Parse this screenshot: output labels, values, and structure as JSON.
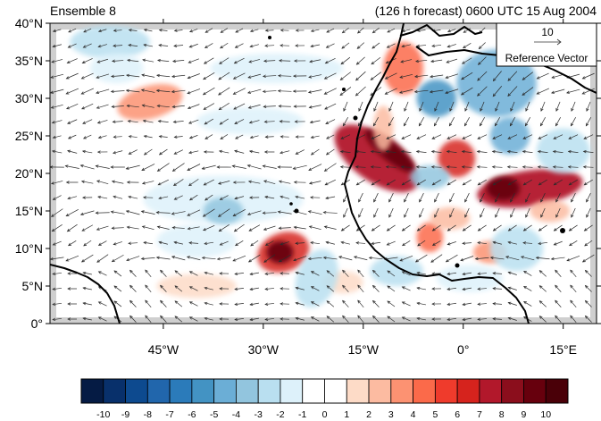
{
  "header": {
    "left_title": "Ensemble 8",
    "right_title": "(126 h forecast) 0600 UTC 15 Aug 2004"
  },
  "map": {
    "lon_range": [
      -62,
      20
    ],
    "lat_range": [
      0,
      40
    ],
    "x_ticks": [
      {
        "lon": -45,
        "label": "45°W"
      },
      {
        "lon": -30,
        "label": "30°W"
      },
      {
        "lon": -15,
        "label": "15°W"
      },
      {
        "lon": 0,
        "label": "0°"
      },
      {
        "lon": 15,
        "label": "15°E"
      }
    ],
    "y_ticks": [
      {
        "lat": 0,
        "label": "0°"
      },
      {
        "lat": 5,
        "label": "5°N"
      },
      {
        "lat": 10,
        "label": "10°N"
      },
      {
        "lat": 15,
        "label": "15°N"
      },
      {
        "lat": 20,
        "label": "20°N"
      },
      {
        "lat": 25,
        "label": "25°N"
      },
      {
        "lat": 30,
        "label": "30°N"
      },
      {
        "lat": 35,
        "label": "35°N"
      },
      {
        "lat": 40,
        "label": "40°N"
      }
    ],
    "reference_vector": {
      "magnitude": "10",
      "label": "Reference Vector"
    },
    "anomaly_patches": [
      {
        "lon": -13,
        "lat": 22,
        "rx": 3.5,
        "ry": 6.5,
        "value": 8,
        "rot": -55
      },
      {
        "lon": -11,
        "lat": 23,
        "rx": 1.4,
        "ry": 4.2,
        "value": 10,
        "rot": -50
      },
      {
        "lon": -1,
        "lat": 22,
        "rx": 2.8,
        "ry": 2.5,
        "value": 7,
        "rot": 0
      },
      {
        "lon": 10,
        "lat": 18,
        "rx": 8,
        "ry": 2.4,
        "value": 8,
        "rot": -8
      },
      {
        "lon": 6,
        "lat": 18,
        "rx": 2.5,
        "ry": 1.6,
        "value": 10,
        "rot": 0
      },
      {
        "lon": -27,
        "lat": 9.5,
        "rx": 4,
        "ry": 2.6,
        "value": 7,
        "rot": -20
      },
      {
        "lon": -27.5,
        "lat": 9.5,
        "rx": 2,
        "ry": 1.5,
        "value": 10,
        "rot": 0
      },
      {
        "lon": -47,
        "lat": 29.5,
        "rx": 5,
        "ry": 2.2,
        "value": 4,
        "rot": -15
      },
      {
        "lon": -9,
        "lat": 34,
        "rx": 3,
        "ry": 3.5,
        "value": 5,
        "rot": 0
      },
      {
        "lon": -12,
        "lat": 26,
        "rx": 1.5,
        "ry": 3,
        "value": 3,
        "rot": 0
      },
      {
        "lon": -5,
        "lat": 11.5,
        "rx": 2,
        "ry": 2,
        "value": 5,
        "rot": 0
      },
      {
        "lon": 4,
        "lat": 9.5,
        "rx": 2.5,
        "ry": 1.5,
        "value": 4,
        "rot": 0
      },
      {
        "lon": -18,
        "lat": 5.5,
        "rx": 3,
        "ry": 1.5,
        "value": 2,
        "rot": 0
      },
      {
        "lon": -40,
        "lat": 5,
        "rx": 6,
        "ry": 1.6,
        "value": 2,
        "rot": 0
      },
      {
        "lon": -37,
        "lat": 22.5,
        "rx": 8,
        "ry": 1.6,
        "value": 1,
        "rot": 0
      },
      {
        "lon": -2,
        "lat": 14,
        "rx": 3,
        "ry": 1.5,
        "value": 3,
        "rot": 0
      },
      {
        "lon": 13,
        "lat": 15,
        "rx": 3,
        "ry": 1.5,
        "value": 3,
        "rot": 0
      },
      {
        "lon": -4,
        "lat": 30,
        "rx": 3,
        "ry": 2.5,
        "value": -5,
        "rot": 0
      },
      {
        "lon": 5,
        "lat": 32,
        "rx": 6,
        "ry": 4.5,
        "value": -4,
        "rot": 0
      },
      {
        "lon": 7,
        "lat": 25,
        "rx": 3,
        "ry": 2.5,
        "value": -4,
        "rot": 0
      },
      {
        "lon": -5,
        "lat": 19.5,
        "rx": 3,
        "ry": 1.6,
        "value": -3,
        "rot": 0
      },
      {
        "lon": -53,
        "lat": 37.5,
        "rx": 6,
        "ry": 2.2,
        "value": -2,
        "rot": 0
      },
      {
        "lon": -52,
        "lat": 34,
        "rx": 4,
        "ry": 2,
        "value": -1,
        "rot": 0
      },
      {
        "lon": -36,
        "lat": 16.5,
        "rx": 12,
        "ry": 3.2,
        "value": -1,
        "rot": 0
      },
      {
        "lon": -36,
        "lat": 15,
        "rx": 3,
        "ry": 1.8,
        "value": -3,
        "rot": 0
      },
      {
        "lon": -22,
        "lat": 6,
        "rx": 3,
        "ry": 4,
        "value": -2,
        "rot": 20
      },
      {
        "lon": -40,
        "lat": 11,
        "rx": 6,
        "ry": 2.2,
        "value": -1,
        "rot": 0
      },
      {
        "lon": -10,
        "lat": 7,
        "rx": 4,
        "ry": 2,
        "value": -2,
        "rot": 0
      },
      {
        "lon": 8,
        "lat": 10,
        "rx": 4,
        "ry": 3,
        "value": -2,
        "rot": 0
      },
      {
        "lon": -28,
        "lat": 34,
        "rx": 10,
        "ry": 2,
        "value": -1,
        "rot": 0
      },
      {
        "lon": 15,
        "lat": 23,
        "rx": 4,
        "ry": 3,
        "value": -2,
        "rot": 0
      },
      {
        "lon": -32,
        "lat": 27,
        "rx": 8,
        "ry": 1.8,
        "value": -1,
        "rot": 0
      },
      {
        "lon": 1,
        "lat": 6,
        "rx": 5,
        "ry": 1.8,
        "value": -1,
        "rot": 0
      }
    ]
  },
  "colorbar": {
    "labels": [
      "-10",
      "-9",
      "-8",
      "-7",
      "-6",
      "-5",
      "-4",
      "-3",
      "-2",
      "-1",
      "0",
      "1",
      "2",
      "3",
      "4",
      "5",
      "6",
      "7",
      "8",
      "9",
      "10"
    ],
    "colors": [
      "#051b44",
      "#08306b",
      "#0d4a8f",
      "#2166ac",
      "#2b7bba",
      "#4393c3",
      "#6baed6",
      "#92c5de",
      "#b9dff0",
      "#ddf1fa",
      "#ffffff",
      "#ffffff",
      "#fddbc7",
      "#fcbba1",
      "#fc9272",
      "#fb6a4a",
      "#ef3b2c",
      "#d6231d",
      "#b2182b",
      "#8b0e1c",
      "#67000d",
      "#4a0008"
    ]
  }
}
